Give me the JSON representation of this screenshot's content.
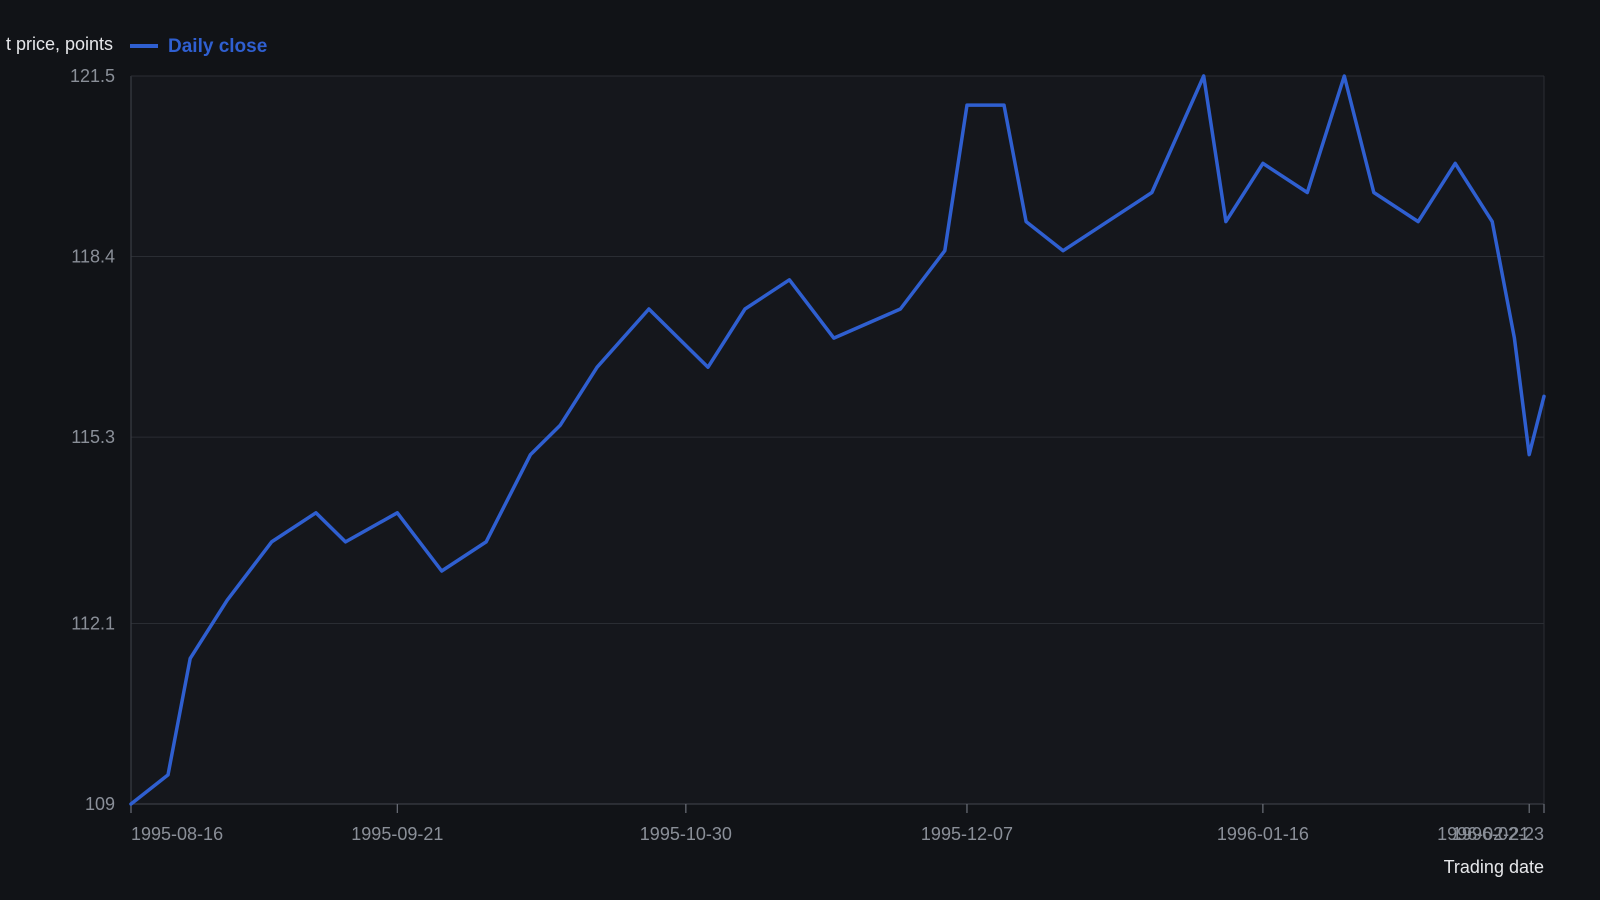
{
  "chart_data": {
    "type": "line",
    "title": "",
    "ylabel": "t price, points",
    "xlabel": "Trading date",
    "ylim": [
      109,
      121.5
    ],
    "yticks": [
      "109",
      "112.1",
      "115.3",
      "118.4",
      "121.5"
    ],
    "x_ticks": [
      {
        "date": "1995-08-16",
        "label": "1995-08-16"
      },
      {
        "date": "1995-09-21",
        "label": "1995-09-21"
      },
      {
        "date": "1995-10-30",
        "label": "1995-10-30"
      },
      {
        "date": "1995-12-07",
        "label": "1995-12-07"
      },
      {
        "date": "1996-01-16",
        "label": "1996-01-16"
      },
      {
        "date": "1996-02-21",
        "label": "1996-02-21"
      },
      {
        "date": "1996-02-23",
        "label": "1996-02-23"
      }
    ],
    "xlim": [
      "1995-08-16",
      "1996-02-23"
    ],
    "grid": true,
    "legend": {
      "position": "top-left",
      "entries": [
        "Daily close"
      ]
    },
    "colors": {
      "series": "#2f5fd0",
      "background": "#111317",
      "plot_background": "#15171c",
      "grid": "#2a2d33",
      "axis_text": "#8a8f98"
    },
    "series": [
      {
        "name": "Daily close",
        "x": [
          "1995-08-16",
          "1995-08-21",
          "1995-08-24",
          "1995-08-29",
          "1995-09-04",
          "1995-09-10",
          "1995-09-14",
          "1995-09-21",
          "1995-09-27",
          "1995-10-03",
          "1995-10-09",
          "1995-10-13",
          "1995-10-18",
          "1995-10-25",
          "1995-10-29",
          "1995-11-02",
          "1995-11-07",
          "1995-11-13",
          "1995-11-19",
          "1995-11-28",
          "1995-12-04",
          "1995-12-07",
          "1995-12-12",
          "1995-12-15",
          "1995-12-20",
          "1996-01-01",
          "1996-01-08",
          "1996-01-11",
          "1996-01-16",
          "1996-01-22",
          "1996-01-27",
          "1996-01-31",
          "1996-02-06",
          "1996-02-11",
          "1996-02-16",
          "1996-02-19",
          "1996-02-21",
          "1996-02-23"
        ],
        "values": [
          109.0,
          109.5,
          111.5,
          112.5,
          113.5,
          114.0,
          113.5,
          114.0,
          113.0,
          113.5,
          115.0,
          115.5,
          116.5,
          117.5,
          117.0,
          116.5,
          117.5,
          118.0,
          117.0,
          117.5,
          118.5,
          121.0,
          121.0,
          119.0,
          118.5,
          119.5,
          121.5,
          119.0,
          120.0,
          119.5,
          121.5,
          119.5,
          119.0,
          120.0,
          119.0,
          117.0,
          115.0,
          116.0
        ]
      }
    ]
  }
}
